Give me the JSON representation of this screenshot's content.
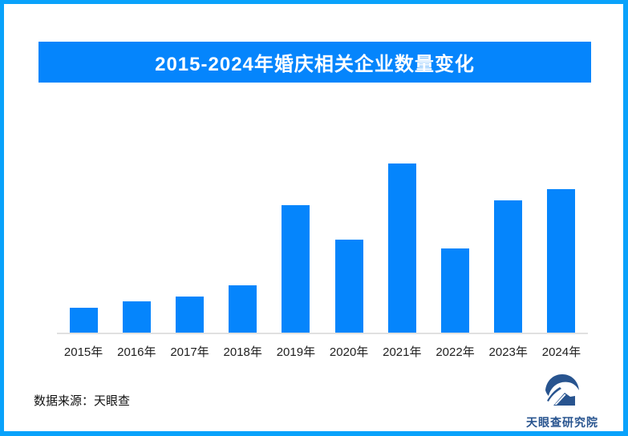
{
  "title_banner": {
    "text": "2015-2024年婚庆相关企业数量变化",
    "background": "#0585fc",
    "text_color": "#ffffff"
  },
  "chart_data": {
    "type": "bar",
    "title": "2015-2024年婚庆相关企业数量变化",
    "categories": [
      "2015年",
      "2016年",
      "2017年",
      "2018年",
      "2019年",
      "2020年",
      "2021年",
      "2022年",
      "2023年",
      "2024年"
    ],
    "values": [
      14.7,
      18.5,
      21.3,
      28.0,
      75.4,
      55.0,
      100.0,
      49.8,
      78.2,
      84.8
    ],
    "values_unit": "relative scale (no y-axis labels shown in chart; 2021 peak = 100)",
    "xlabel": "",
    "ylabel": "",
    "y_axis_visible": false,
    "gridlines": false,
    "legend": "none",
    "bar_color": "#0585fc",
    "baseline_color": "#e0e0e0"
  },
  "footer": {
    "source_text": "数据来源：天眼查",
    "logo_text": "天眼查研究院",
    "logo_color": "#28548f"
  },
  "frame": {
    "border_color": "#09a2fb",
    "background": "#ffffff"
  }
}
